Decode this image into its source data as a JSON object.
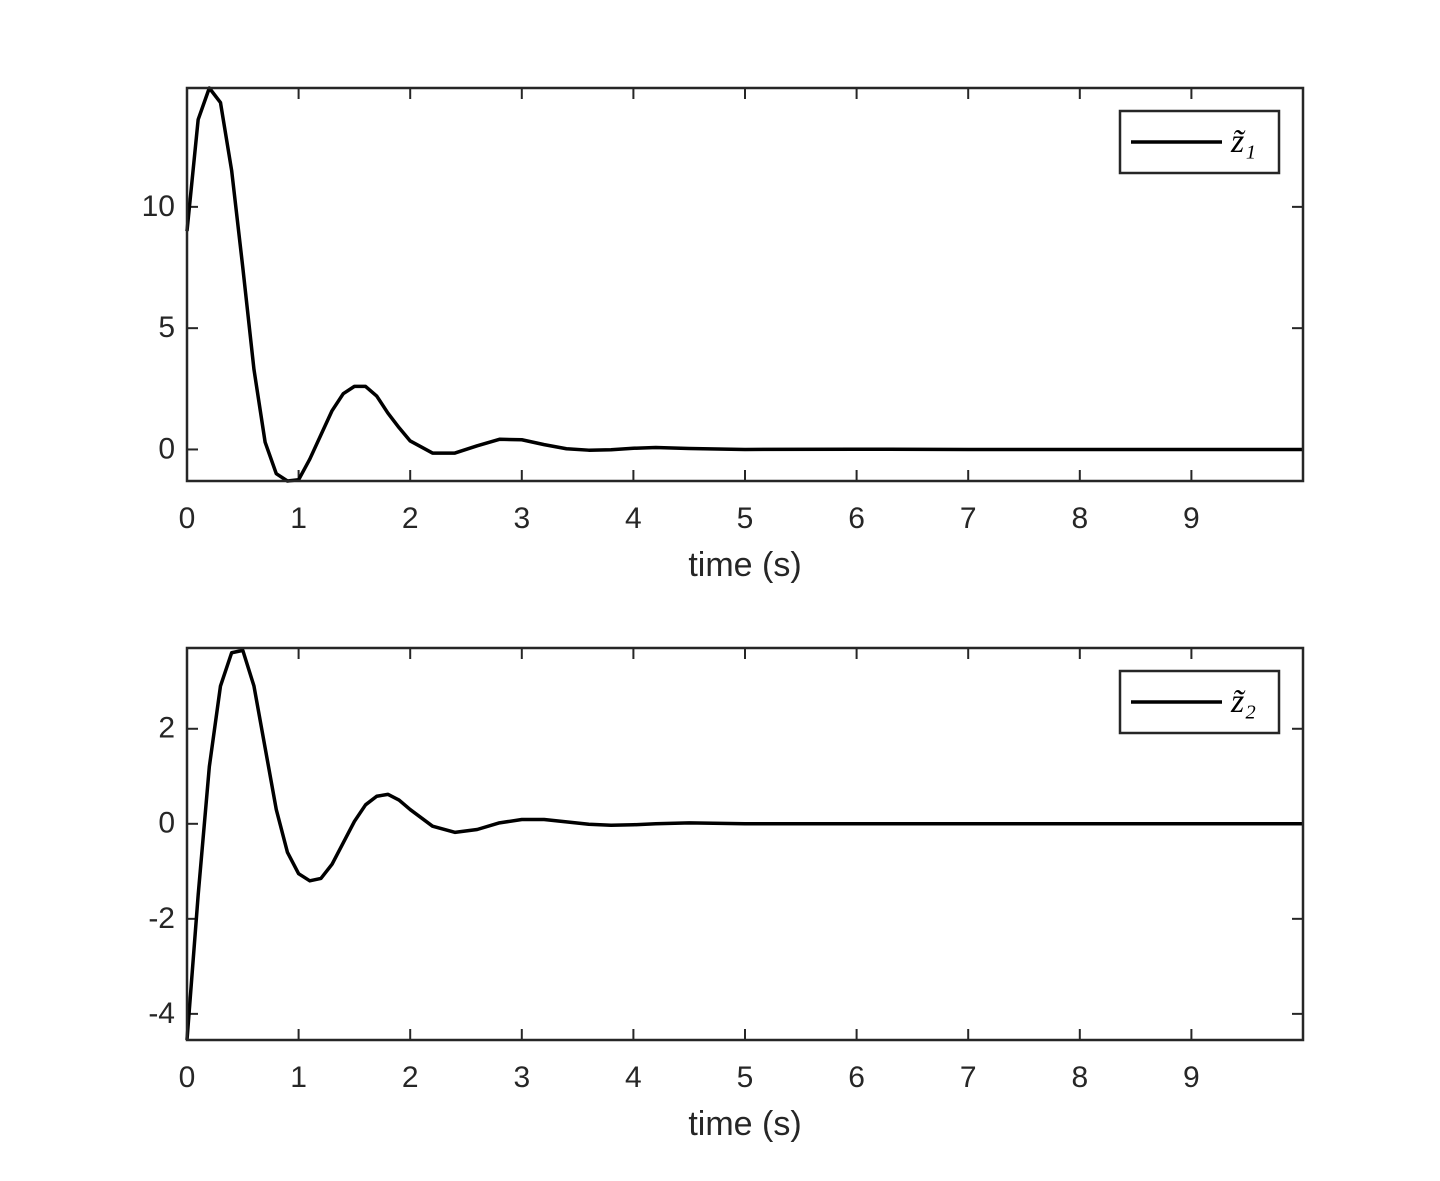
{
  "chart_data": [
    {
      "type": "line",
      "xlabel": "time (s)",
      "legend": "upper right",
      "xlim": [
        0,
        10
      ],
      "xticks": [
        0,
        1,
        2,
        3,
        4,
        5,
        6,
        7,
        8,
        9
      ],
      "ylim": [
        -1.3,
        14.9
      ],
      "yticks": [
        0,
        5,
        10
      ],
      "x": [
        0,
        0.1,
        0.2,
        0.3,
        0.4,
        0.5,
        0.6,
        0.7,
        0.8,
        0.9,
        1.0,
        1.1,
        1.2,
        1.3,
        1.4,
        1.5,
        1.6,
        1.7,
        1.8,
        1.9,
        2.0,
        2.2,
        2.4,
        2.6,
        2.8,
        3.0,
        3.2,
        3.4,
        3.6,
        3.8,
        4.0,
        4.2,
        4.5,
        5,
        6,
        7,
        8,
        9,
        10
      ],
      "series": [
        {
          "name": "z̃₁",
          "color": "#000000",
          "values": [
            9,
            13.6,
            14.9,
            14.3,
            11.5,
            7.5,
            3.3,
            0.3,
            -1.0,
            -1.3,
            -1.25,
            -0.4,
            0.6,
            1.6,
            2.3,
            2.6,
            2.6,
            2.2,
            1.5,
            0.9,
            0.35,
            -0.15,
            -0.15,
            0.15,
            0.42,
            0.4,
            0.2,
            0.03,
            -0.03,
            -0.01,
            0.05,
            0.08,
            0.04,
            0,
            0.01,
            0,
            0,
            0,
            0
          ]
        }
      ]
    },
    {
      "type": "line",
      "xlabel": "time (s)",
      "legend": "upper right",
      "xlim": [
        0,
        10
      ],
      "xticks": [
        0,
        1,
        2,
        3,
        4,
        5,
        6,
        7,
        8,
        9
      ],
      "ylim": [
        -4.55,
        3.7
      ],
      "yticks": [
        -4,
        -2,
        0,
        2
      ],
      "x": [
        0,
        0.1,
        0.2,
        0.3,
        0.4,
        0.5,
        0.6,
        0.7,
        0.8,
        0.9,
        1.0,
        1.1,
        1.2,
        1.3,
        1.4,
        1.5,
        1.6,
        1.7,
        1.8,
        1.9,
        2.0,
        2.2,
        2.4,
        2.6,
        2.8,
        3.0,
        3.2,
        3.4,
        3.6,
        3.8,
        4.0,
        4.2,
        4.5,
        5,
        6,
        7,
        8,
        9,
        10
      ],
      "series": [
        {
          "name": "z̃₂",
          "color": "#000000",
          "values": [
            -4.55,
            -1.5,
            1.2,
            2.9,
            3.6,
            3.65,
            2.9,
            1.6,
            0.3,
            -0.6,
            -1.05,
            -1.2,
            -1.15,
            -0.85,
            -0.4,
            0.05,
            0.4,
            0.58,
            0.62,
            0.5,
            0.3,
            -0.05,
            -0.18,
            -0.12,
            0.02,
            0.09,
            0.09,
            0.04,
            -0.01,
            -0.03,
            -0.02,
            0,
            0.02,
            0,
            0,
            0,
            0,
            0,
            0
          ]
        }
      ]
    }
  ]
}
